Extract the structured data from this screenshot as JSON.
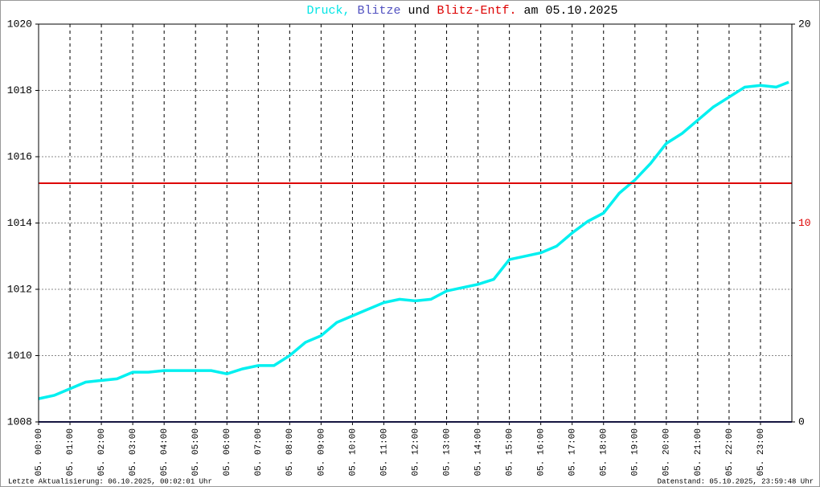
{
  "chart_data": {
    "type": "line",
    "title_parts": [
      {
        "text": "Druck,",
        "color": "#00e5e5"
      },
      {
        "text": "Blitze",
        "color": "#5050c0"
      },
      {
        "text": "und",
        "color": "#000000"
      },
      {
        "text": "Blitz-Entf.",
        "color": "#dd0000"
      },
      {
        "text": "am 05.10.2025",
        "color": "#000000"
      }
    ],
    "xlim": [
      0,
      24
    ],
    "xticks": [
      {
        "value": 0,
        "label": "05. 00:00"
      },
      {
        "value": 1,
        "label": "05. 01:00"
      },
      {
        "value": 2,
        "label": "05. 02:00"
      },
      {
        "value": 3,
        "label": "05. 03:00"
      },
      {
        "value": 4,
        "label": "05. 04:00"
      },
      {
        "value": 5,
        "label": "05. 05:00"
      },
      {
        "value": 6,
        "label": "05. 06:00"
      },
      {
        "value": 7,
        "label": "05. 07:00"
      },
      {
        "value": 8,
        "label": "05. 08:00"
      },
      {
        "value": 9,
        "label": "05. 09:00"
      },
      {
        "value": 10,
        "label": "05. 10:00"
      },
      {
        "value": 11,
        "label": "05. 11:00"
      },
      {
        "value": 12,
        "label": "05. 12:00"
      },
      {
        "value": 13,
        "label": "05. 13:00"
      },
      {
        "value": 14,
        "label": "05. 14:00"
      },
      {
        "value": 15,
        "label": "05. 15:00"
      },
      {
        "value": 16,
        "label": "05. 16:00"
      },
      {
        "value": 17,
        "label": "05. 17:00"
      },
      {
        "value": 18,
        "label": "05. 18:00"
      },
      {
        "value": 19,
        "label": "05. 19:00"
      },
      {
        "value": 20,
        "label": "05. 20:00"
      },
      {
        "value": 21,
        "label": "05. 21:00"
      },
      {
        "value": 22,
        "label": "05. 22:00"
      },
      {
        "value": 23,
        "label": "05. 23:00"
      }
    ],
    "ylim": [
      1008,
      1020
    ],
    "yticks": [
      1008,
      1010,
      1012,
      1014,
      1016,
      1018,
      1020
    ],
    "y2lim": [
      0,
      20
    ],
    "y2ticks": [
      0,
      10,
      20
    ],
    "y2tick_colors": [
      "#000000",
      "#dd0000",
      "#000000"
    ],
    "grid": true,
    "series": [
      {
        "name": "Druck",
        "color": "#00f0f0",
        "axis": "y",
        "x": [
          0,
          0.5,
          1,
          1.5,
          2,
          2.5,
          3,
          3.5,
          4,
          4.5,
          5,
          5.5,
          6,
          6.5,
          7,
          7.5,
          8,
          8.5,
          9,
          9.5,
          10,
          10.5,
          11,
          11.5,
          12,
          12.5,
          13,
          13.5,
          14,
          14.5,
          15,
          15.5,
          16,
          16.5,
          17,
          17.5,
          18,
          18.5,
          19,
          19.5,
          20,
          20.5,
          21,
          21.5,
          22,
          22.5,
          23,
          23.5,
          23.9
        ],
        "values": [
          1008.7,
          1008.8,
          1009.0,
          1009.2,
          1009.25,
          1009.3,
          1009.5,
          1009.5,
          1009.55,
          1009.55,
          1009.55,
          1009.55,
          1009.45,
          1009.6,
          1009.7,
          1009.7,
          1010.0,
          1010.4,
          1010.6,
          1011.0,
          1011.2,
          1011.4,
          1011.6,
          1011.7,
          1011.65,
          1011.7,
          1011.95,
          1012.05,
          1012.15,
          1012.3,
          1012.9,
          1013.0,
          1013.1,
          1013.3,
          1013.7,
          1014.05,
          1014.3,
          1014.9,
          1015.3,
          1015.8,
          1016.4,
          1016.7,
          1017.1,
          1017.5,
          1017.8,
          1018.1,
          1018.15,
          1018.1,
          1018.25
        ]
      },
      {
        "name": "Blitze",
        "color": "#2a2a80",
        "axis": "y2",
        "x": [
          0,
          24
        ],
        "values": [
          0,
          0
        ]
      },
      {
        "name": "Blitz-Entf.",
        "color": "#dd0000",
        "axis": "y2",
        "x": [
          0,
          24
        ],
        "values": [
          12,
          12
        ]
      }
    ],
    "footer_left": "Letzte Aktualisierung: 06.10.2025, 00:02:01 Uhr",
    "footer_right": "Datenstand: 05.10.2025, 23:59:48 Uhr"
  }
}
